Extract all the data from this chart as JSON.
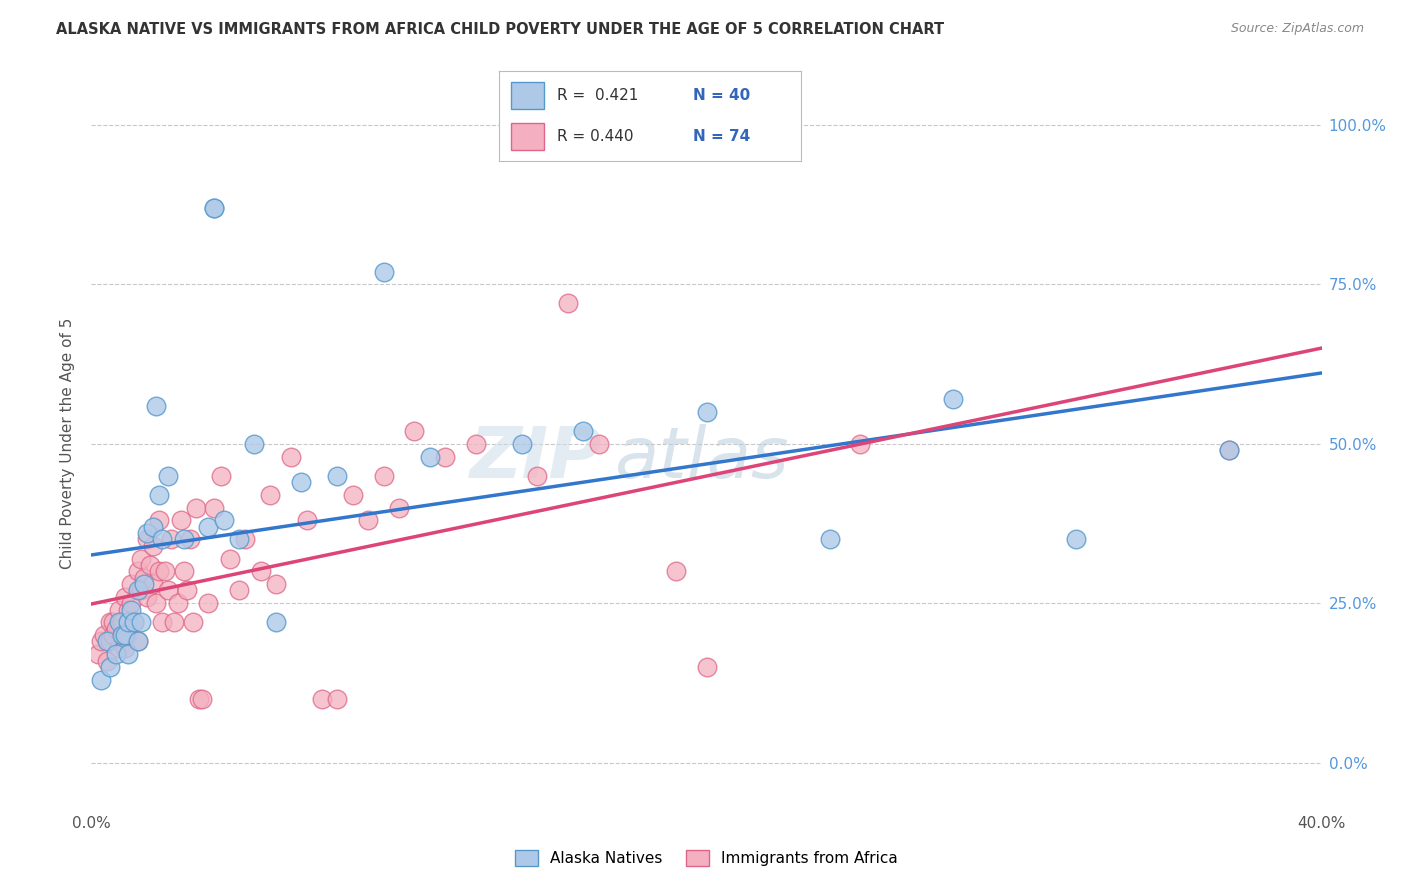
{
  "title": "ALASKA NATIVE VS IMMIGRANTS FROM AFRICA CHILD POVERTY UNDER THE AGE OF 5 CORRELATION CHART",
  "source": "Source: ZipAtlas.com",
  "ylabel": "Child Poverty Under the Age of 5",
  "xlim": [
    0.0,
    0.4
  ],
  "ylim": [
    -0.07,
    1.07
  ],
  "ytick_positions": [
    0.0,
    0.25,
    0.5,
    0.75,
    1.0
  ],
  "ytick_labels_right": [
    "0.0%",
    "25.0%",
    "50.0%",
    "75.0%",
    "100.0%"
  ],
  "xtick_positions": [
    0.0,
    0.05,
    0.1,
    0.15,
    0.2,
    0.25,
    0.3,
    0.35,
    0.4
  ],
  "background_color": "#ffffff",
  "grid_color": "#c8c8c8",
  "blue_fill": "#aec9e8",
  "pink_fill": "#f4b0c0",
  "blue_edge": "#5599cc",
  "pink_edge": "#dd6688",
  "blue_line": "#3377cc",
  "pink_line": "#dd4477",
  "label1": "Alaska Natives",
  "label2": "Immigrants from Africa",
  "alaska_x": [
    0.003,
    0.005,
    0.006,
    0.008,
    0.009,
    0.01,
    0.011,
    0.012,
    0.012,
    0.013,
    0.014,
    0.015,
    0.015,
    0.016,
    0.017,
    0.018,
    0.02,
    0.021,
    0.022,
    0.023,
    0.025,
    0.03,
    0.038,
    0.04,
    0.04,
    0.043,
    0.048,
    0.053,
    0.06,
    0.068,
    0.08,
    0.095,
    0.11,
    0.14,
    0.16,
    0.2,
    0.24,
    0.28,
    0.32,
    0.37
  ],
  "alaska_y": [
    0.13,
    0.19,
    0.15,
    0.17,
    0.22,
    0.2,
    0.2,
    0.22,
    0.17,
    0.24,
    0.22,
    0.19,
    0.27,
    0.22,
    0.28,
    0.36,
    0.37,
    0.56,
    0.42,
    0.35,
    0.45,
    0.35,
    0.37,
    0.87,
    0.87,
    0.38,
    0.35,
    0.5,
    0.22,
    0.44,
    0.45,
    0.77,
    0.48,
    0.5,
    0.52,
    0.55,
    0.35,
    0.57,
    0.35,
    0.49
  ],
  "africa_x": [
    0.002,
    0.003,
    0.004,
    0.005,
    0.006,
    0.006,
    0.007,
    0.007,
    0.008,
    0.009,
    0.009,
    0.01,
    0.01,
    0.011,
    0.011,
    0.012,
    0.012,
    0.013,
    0.013,
    0.014,
    0.015,
    0.015,
    0.016,
    0.016,
    0.017,
    0.018,
    0.018,
    0.019,
    0.02,
    0.02,
    0.021,
    0.022,
    0.022,
    0.023,
    0.024,
    0.025,
    0.026,
    0.027,
    0.028,
    0.029,
    0.03,
    0.031,
    0.032,
    0.033,
    0.034,
    0.035,
    0.036,
    0.038,
    0.04,
    0.042,
    0.045,
    0.048,
    0.05,
    0.055,
    0.058,
    0.06,
    0.065,
    0.07,
    0.075,
    0.08,
    0.085,
    0.09,
    0.095,
    0.1,
    0.105,
    0.115,
    0.125,
    0.145,
    0.155,
    0.165,
    0.19,
    0.2,
    0.25,
    0.37
  ],
  "africa_y": [
    0.17,
    0.19,
    0.2,
    0.16,
    0.22,
    0.19,
    0.2,
    0.22,
    0.21,
    0.18,
    0.24,
    0.2,
    0.22,
    0.18,
    0.26,
    0.24,
    0.2,
    0.28,
    0.25,
    0.22,
    0.19,
    0.3,
    0.27,
    0.32,
    0.29,
    0.26,
    0.35,
    0.31,
    0.28,
    0.34,
    0.25,
    0.3,
    0.38,
    0.22,
    0.3,
    0.27,
    0.35,
    0.22,
    0.25,
    0.38,
    0.3,
    0.27,
    0.35,
    0.22,
    0.4,
    0.1,
    0.1,
    0.25,
    0.4,
    0.45,
    0.32,
    0.27,
    0.35,
    0.3,
    0.42,
    0.28,
    0.48,
    0.38,
    0.1,
    0.1,
    0.42,
    0.38,
    0.45,
    0.4,
    0.52,
    0.48,
    0.5,
    0.45,
    0.72,
    0.5,
    0.3,
    0.15,
    0.5,
    0.49
  ]
}
